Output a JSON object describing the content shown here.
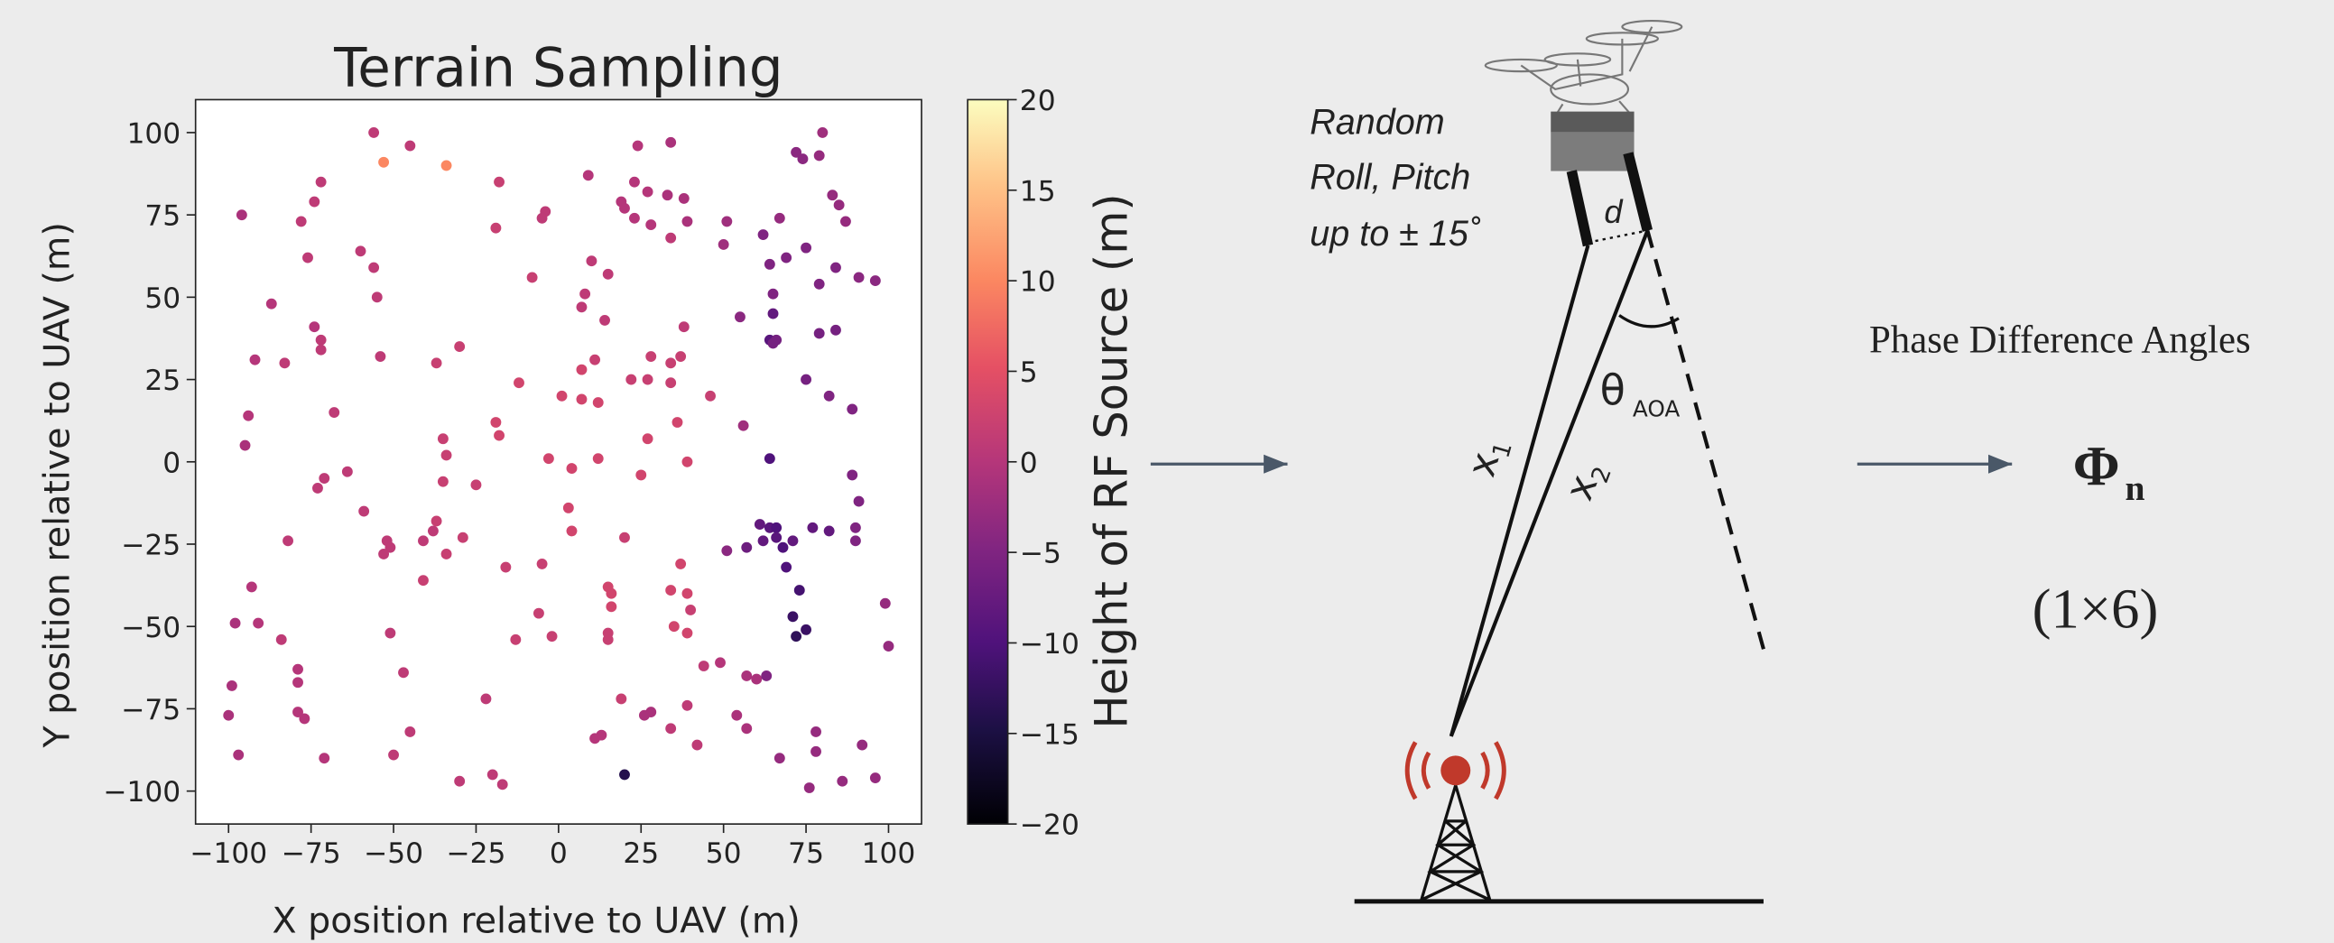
{
  "chart_data": {
    "type": "scatter",
    "title": "Terrain Sampling",
    "x_label": "X position relative to UAV (m)",
    "y_label": "Y position relative to UAV (m)",
    "xlim": [
      -110,
      110
    ],
    "ylim": [
      -110,
      110
    ],
    "xticks": [
      {
        "value": -100,
        "label": "−100"
      },
      {
        "value": -75,
        "label": "−75"
      },
      {
        "value": -50,
        "label": "−50"
      },
      {
        "value": -25,
        "label": "−25"
      },
      0,
      25,
      50,
      75,
      100
    ],
    "yticks": [
      {
        "value": -100,
        "label": "−100"
      },
      {
        "value": -75,
        "label": "−75"
      },
      {
        "value": -50,
        "label": "−50"
      },
      {
        "value": -25,
        "label": "−25"
      },
      0,
      25,
      50,
      75,
      100
    ],
    "series": [
      {
        "x": [
          -56,
          -45,
          -53,
          -34,
          -96,
          -72,
          -74,
          -78,
          -76,
          -87,
          -92,
          -83,
          -74,
          -72,
          -72,
          -94,
          -95,
          -68,
          -64,
          -71,
          -73,
          -59,
          -82,
          -93,
          -98,
          -91,
          -84,
          -79,
          -79,
          -99,
          -79,
          -77,
          -100,
          -97,
          -71,
          -60,
          -56,
          -55,
          -54,
          -37,
          -30,
          -52,
          -51,
          -53,
          -37,
          -38,
          -41,
          -34,
          -41,
          -29,
          -51,
          -47,
          -45,
          -50,
          -30,
          -20,
          -17,
          -22,
          -35,
          -34,
          -35,
          -25,
          -18,
          -19,
          -8,
          -12,
          -19,
          -18,
          -16,
          -13,
          -5,
          -6,
          -2,
          -4,
          -5,
          1,
          -3,
          4,
          3,
          4,
          7,
          7,
          7,
          8,
          10,
          9,
          12,
          11,
          14,
          15,
          20,
          19,
          12,
          15,
          16,
          16,
          15,
          15,
          13,
          11,
          20,
          19,
          24,
          23,
          27,
          28,
          23,
          22,
          27,
          28,
          27,
          25,
          28,
          26,
          20,
          34,
          33,
          34,
          38,
          39,
          38,
          34,
          37,
          34,
          36,
          39,
          46,
          37,
          34,
          39,
          40,
          35,
          39,
          44,
          39,
          34,
          42,
          51,
          50,
          55,
          56,
          51,
          49,
          57,
          60,
          54,
          57,
          63,
          62,
          64,
          65,
          65,
          64,
          66,
          65,
          69,
          67,
          72,
          74,
          80,
          79,
          75,
          79,
          83,
          85,
          87,
          84,
          91,
          96,
          79,
          84,
          75,
          82,
          89,
          64,
          61,
          64,
          66,
          62,
          66,
          68,
          71,
          57,
          77,
          82,
          69,
          73,
          71,
          75,
          72,
          89,
          91,
          90,
          90,
          99,
          100,
          78,
          78,
          67,
          76,
          86,
          92,
          96
        ],
        "values": [
          100,
          96,
          91,
          90,
          75,
          85,
          79,
          73,
          62,
          48,
          31,
          30,
          41,
          37,
          34,
          14,
          5,
          15,
          -3,
          -5,
          -8,
          -15,
          -24,
          -38,
          -49,
          -49,
          -54,
          -63,
          -67,
          -68,
          -76,
          -78,
          -77,
          -89,
          -90,
          64,
          59,
          50,
          32,
          30,
          35,
          -24,
          -26,
          -28,
          -18,
          -21,
          -24,
          -28,
          -36,
          -23,
          -52,
          -64,
          -82,
          -89,
          -97,
          -95,
          -98,
          -72,
          7,
          2,
          -6,
          -7,
          85,
          71,
          56,
          24,
          12,
          8,
          -32,
          -54,
          -31,
          -46,
          -53,
          76,
          74,
          20,
          1,
          -2,
          -14,
          -21,
          19,
          28,
          47,
          51,
          61,
          87,
          1,
          31,
          43,
          57,
          77,
          79,
          18,
          -38,
          -40,
          -44,
          -52,
          -54,
          -83,
          -84,
          -95,
          -72,
          96,
          85,
          82,
          72,
          74,
          25,
          25,
          32,
          7,
          -4,
          -76,
          -77,
          -23,
          97,
          81,
          68,
          80,
          73,
          41,
          30,
          32,
          24,
          12,
          0,
          20,
          -31,
          -39,
          -40,
          -45,
          -50,
          -52,
          -62,
          -74,
          -81,
          -86,
          73,
          66,
          44,
          11,
          -27,
          -61,
          -65,
          -66,
          -77,
          -81,
          -65,
          69,
          60,
          51,
          45,
          37,
          37,
          36,
          62,
          74,
          94,
          92,
          100,
          93,
          65,
          54,
          81,
          78,
          73,
          59,
          56,
          55,
          39,
          40,
          25,
          20,
          16,
          1,
          -19,
          -20,
          -20,
          -24,
          -23,
          -26,
          -24,
          -26,
          -20,
          -21,
          -32,
          -39,
          -47,
          -51,
          -53,
          -4,
          -12,
          -20,
          -24,
          -43,
          -56,
          -82,
          -88,
          -90,
          -99,
          -97,
          -86,
          -96
        ],
        "color_values": [
          1,
          1,
          10,
          10,
          -1,
          1,
          1,
          1,
          1,
          0,
          0,
          1,
          0,
          1,
          1,
          0,
          -1,
          1,
          1,
          1,
          1,
          1,
          1,
          0,
          -1,
          0,
          1,
          0,
          0,
          -1,
          0,
          0,
          -1,
          -1,
          0,
          1,
          1,
          1,
          1,
          2,
          2,
          1,
          1,
          1,
          2,
          1,
          1,
          2,
          2,
          2,
          1,
          1,
          1,
          1,
          1,
          1,
          1,
          1,
          2,
          2,
          2,
          2,
          2,
          2,
          2,
          3,
          3,
          3,
          2,
          2,
          2,
          2,
          2,
          1,
          1,
          3,
          3,
          3,
          3,
          3,
          3,
          3,
          1,
          1,
          1,
          0,
          3,
          2,
          1,
          1,
          0,
          0,
          3,
          3,
          3,
          3,
          2,
          2,
          0,
          0,
          -14,
          2,
          0,
          0,
          0,
          0,
          0,
          2,
          2,
          2,
          3,
          3,
          -1,
          -1,
          2,
          -1,
          -1,
          1,
          -1,
          -1,
          1,
          2,
          2,
          2,
          3,
          3,
          2,
          3,
          3,
          3,
          2,
          3,
          3,
          1,
          1,
          1,
          1,
          -2,
          -2,
          -4,
          -2,
          -4,
          0,
          -1,
          -1,
          -1,
          -1,
          -5,
          -5,
          -5,
          -5,
          -8,
          -9,
          -6,
          -6,
          -5,
          -3,
          -4,
          -4,
          -2,
          -3,
          -5,
          -5,
          -3,
          -3,
          -3,
          -5,
          -4,
          -4,
          -6,
          -6,
          -6,
          -5,
          -5,
          -10,
          -8,
          -9,
          -10,
          -8,
          -9,
          -10,
          -8,
          -7,
          -8,
          -8,
          -10,
          -11,
          -12,
          -12,
          -13,
          -5,
          -5,
          -5,
          -5,
          -3,
          -3,
          -3,
          -3,
          -3,
          -3,
          -3,
          -3,
          -3
        ]
      }
    ],
    "colorbar": {
      "label": "Height of RF Source (m)",
      "colormap": "magma",
      "lim": [
        -20,
        20
      ],
      "ticks": [
        20,
        15,
        10,
        5,
        0,
        {
          "value": -5,
          "label": "−5"
        },
        {
          "value": -10,
          "label": "−10"
        },
        {
          "value": -15,
          "label": "−15"
        },
        {
          "value": -20,
          "label": "−20"
        }
      ]
    }
  },
  "diagram": {
    "motion_note": [
      "Random",
      "Roll, Pitch",
      "up to ± 15˚"
    ],
    "baseline": "d",
    "angle": {
      "symbol": "θ",
      "sub": "AOA"
    },
    "x1": {
      "symbol": "x",
      "sub": "1"
    },
    "x2": {
      "symbol": "x",
      "sub": "2"
    },
    "output_label": "Phase Difference Angles",
    "output_symbol": {
      "symbol": "Φ",
      "sub": "n"
    },
    "output_shape": "(1×6)"
  }
}
